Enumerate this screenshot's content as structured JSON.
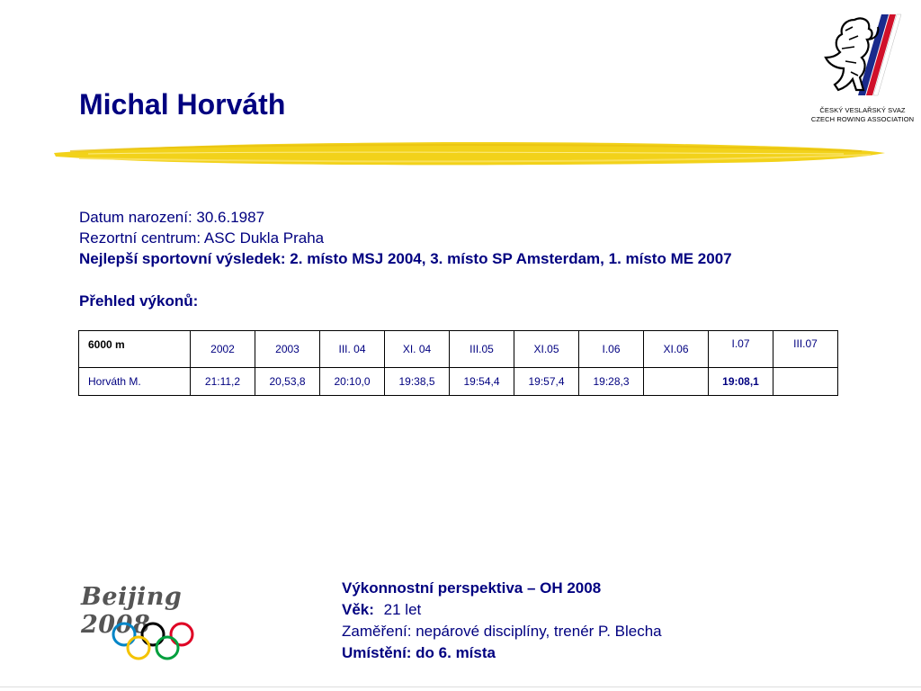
{
  "title": "Michal Horváth",
  "logo": {
    "line1": "ČESKÝ VESLAŘSKÝ SVAZ",
    "line2": "CZECH ROWING ASSOCIATION"
  },
  "info": {
    "birth": "Datum narození: 30.6.1987",
    "center": "Rezortní centrum: ASC Dukla Praha",
    "best": "Nejlepší sportovní výsledek: 2. místo MSJ 2004, 3. místo SP Amsterdam, 1. místo ME 2007"
  },
  "section_title": "Přehled výkonů:",
  "table": {
    "header": [
      "6000 m",
      "2002",
      "2003",
      "III. 04",
      "XI. 04",
      "III.05",
      "XI.05",
      "I.06",
      "XI.06",
      "I.07",
      "III.07"
    ],
    "row": [
      "Horváth M.",
      "21:11,2",
      "20,53,8",
      "20:10,0",
      "19:38,5",
      "19:54,4",
      "19:57,4",
      "19:28,3",
      "",
      "19:08,1",
      ""
    ]
  },
  "olympic": {
    "text": "Beijing 2008"
  },
  "perspective": {
    "title": "Výkonnostní perspektiva – OH 2008",
    "age_label": "Věk:",
    "age_value": "21 let",
    "focus": "Zaměření: nepárové disciplíny, trenér P. Blecha",
    "placement": "Umístění: do 6. místa"
  },
  "colors": {
    "text": "#000080",
    "brush": "#f2d21a",
    "ring_blue": "#0085c7",
    "ring_black": "#000000",
    "ring_red": "#df0024",
    "ring_yellow": "#f4c300",
    "ring_green": "#009f3d"
  }
}
